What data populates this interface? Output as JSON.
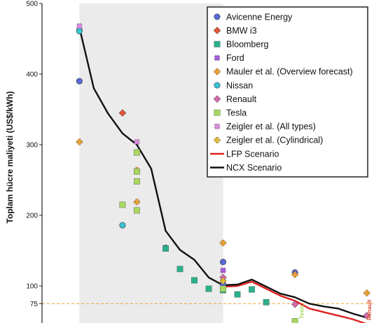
{
  "chart_data": {
    "type": "scatter",
    "ylabel": "Toplam hücre maliyeti (US$/kWh)",
    "ylim": [
      0,
      500
    ],
    "yticks": [
      100,
      200,
      300,
      400,
      500
    ],
    "ref_line": {
      "value": 75,
      "label": "75",
      "color": "#f0a030"
    },
    "shaded_region": {
      "x_from": 2010,
      "x_to": 2020
    },
    "x_range": [
      2007.4,
      2030.5
    ],
    "y_visible_min": 13,
    "legend": {
      "position": "top-right"
    },
    "vertical_labels": [
      {
        "text": "Tesla",
        "color": "#a8d860"
      },
      {
        "text": "Renault",
        "color": "#e05030"
      }
    ],
    "series": [
      {
        "name": "Avicenne Energy",
        "marker": "circle",
        "color": "#5a6ad8",
        "points": [
          [
            2010,
            390
          ],
          [
            2020,
            134
          ],
          [
            2016,
            154
          ],
          [
            2025,
            119
          ],
          [
            2020,
            102
          ],
          [
            2010,
            462
          ]
        ]
      },
      {
        "name": "BMW i3",
        "marker": "diamond",
        "color": "#e05536",
        "points": [
          [
            2013,
            345
          ]
        ]
      },
      {
        "name": "Bloomberg",
        "marker": "square",
        "color": "#2ab08a",
        "points": [
          [
            2016,
            153
          ],
          [
            2017,
            124
          ],
          [
            2018,
            108
          ],
          [
            2019,
            96
          ],
          [
            2020,
            94
          ],
          [
            2021,
            88
          ],
          [
            2022,
            95
          ],
          [
            2023,
            77
          ]
        ]
      },
      {
        "name": "Ford",
        "marker": "x",
        "color": "#a45ad8",
        "points": [
          [
            2020,
            122
          ]
        ]
      },
      {
        "name": "Mauler et al. (Overview forecast)",
        "marker": "plus",
        "color": "#e8a038",
        "points": [
          [
            2010,
            304
          ],
          [
            2014,
            219
          ],
          [
            2014,
            264
          ],
          [
            2020,
            161
          ],
          [
            2025,
            116
          ],
          [
            2030,
            90
          ]
        ]
      },
      {
        "name": "Nissan",
        "marker": "circle",
        "color": "#38c6d8",
        "points": [
          [
            2010,
            461
          ],
          [
            2013,
            186
          ]
        ]
      },
      {
        "name": "Renault",
        "marker": "diamond",
        "color": "#d66aa8",
        "points": [
          [
            2020,
            112
          ],
          [
            2025,
            74
          ],
          [
            2030,
            58
          ]
        ]
      },
      {
        "name": "Tesla",
        "marker": "square",
        "color": "#a8d860",
        "points": [
          [
            2013,
            215
          ],
          [
            2014,
            289
          ],
          [
            2014,
            248
          ],
          [
            2014,
            207
          ],
          [
            2014,
            262
          ],
          [
            2020,
            96
          ],
          [
            2025,
            50
          ]
        ]
      },
      {
        "name": "Zeigler et al. (All types)",
        "marker": "x",
        "color": "#d88ae0",
        "points": [
          [
            2010,
            468
          ],
          [
            2014,
            304
          ]
        ]
      },
      {
        "name": "Zeigler et al. (Cylindrical)",
        "marker": "plus",
        "color": "#e0c040",
        "points": [
          [
            2020,
            107
          ]
        ]
      },
      {
        "name": "LFP Scenario",
        "marker": "line",
        "color": "#e02020",
        "points": [
          [
            2020,
            99
          ],
          [
            2021,
            100
          ],
          [
            2022,
            106
          ],
          [
            2023,
            96
          ],
          [
            2024,
            86
          ],
          [
            2025,
            79
          ],
          [
            2026,
            68
          ],
          [
            2027,
            63
          ],
          [
            2028,
            58
          ],
          [
            2029,
            53
          ],
          [
            2030,
            46
          ]
        ]
      },
      {
        "name": "NCX Scenario",
        "marker": "line",
        "color": "#111111",
        "points": [
          [
            2010,
            466
          ],
          [
            2011,
            380
          ],
          [
            2012,
            344
          ],
          [
            2013,
            316
          ],
          [
            2014,
            300
          ],
          [
            2015,
            266
          ],
          [
            2016,
            178
          ],
          [
            2017,
            151
          ],
          [
            2018,
            137
          ],
          [
            2019,
            112
          ],
          [
            2020,
            101
          ],
          [
            2021,
            102
          ],
          [
            2022,
            109
          ],
          [
            2023,
            99
          ],
          [
            2024,
            89
          ],
          [
            2025,
            84
          ],
          [
            2026,
            75
          ],
          [
            2027,
            71
          ],
          [
            2028,
            68
          ],
          [
            2029,
            61
          ],
          [
            2030,
            55
          ]
        ]
      }
    ]
  }
}
